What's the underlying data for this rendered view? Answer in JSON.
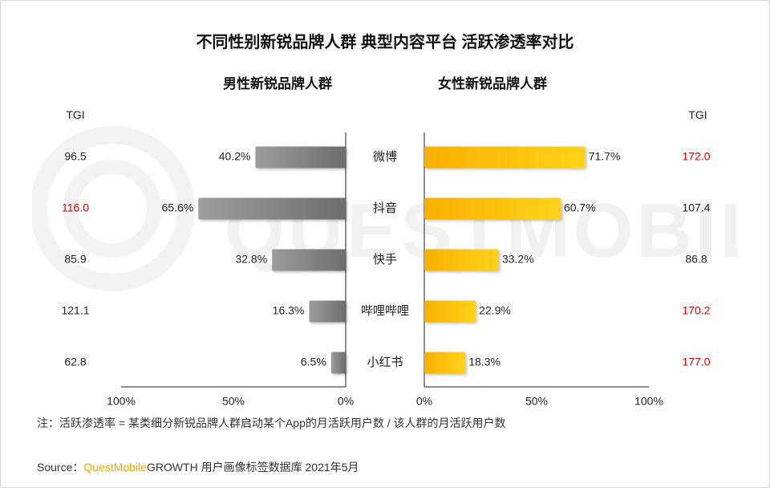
{
  "title": "不同性别新锐品牌人群 典型内容平台 活跃渗透率对比",
  "male_title": "男性新锐品牌人群",
  "female_title": "女性新锐品牌人群",
  "tgi_label": "TGI",
  "note": "注：活跃渗透率 = 某类细分新锐品牌人群启动某个App的月活跃用户数 / 该人群的月活跃用户数",
  "source": {
    "prefix": "Source：",
    "brand": "QuestMobile",
    "rest": "GROWTH 用户画像标签数据库 2021年5月"
  },
  "watermark": "QUESTMOBILE",
  "colors": {
    "male_bar": "#8c8c8c",
    "female_bar": "#f9b800",
    "highlight": "#e00000",
    "normal_text": "#222222"
  },
  "chart_data": {
    "type": "bar",
    "orientation": "horizontal-butterfly",
    "categories": [
      "微博",
      "抖音",
      "快手",
      "哔哩哔哩",
      "小红书"
    ],
    "series": [
      {
        "name": "男性新锐品牌人群",
        "values": [
          40.2,
          65.6,
          32.8,
          16.3,
          6.5
        ],
        "labels": [
          "40.2%",
          "65.6%",
          "32.8%",
          "16.3%",
          "6.5%"
        ],
        "tgi": [
          "96.5",
          "116.0",
          "85.9",
          "121.1",
          "62.8"
        ],
        "tgi_highlight": [
          false,
          true,
          false,
          false,
          false
        ]
      },
      {
        "name": "女性新锐品牌人群",
        "values": [
          71.7,
          60.7,
          33.2,
          22.9,
          18.3
        ],
        "labels": [
          "71.7%",
          "60.7%",
          "33.2%",
          "22.9%",
          "18.3%"
        ],
        "tgi": [
          "172.0",
          "107.4",
          "86.8",
          "170.2",
          "177.0"
        ],
        "tgi_highlight": [
          true,
          false,
          false,
          true,
          true
        ]
      }
    ],
    "xlim": [
      0,
      100
    ],
    "male_ticks": [
      "100%",
      "50%",
      "0%"
    ],
    "female_ticks": [
      "0%",
      "50%",
      "100%"
    ],
    "grid": false
  }
}
